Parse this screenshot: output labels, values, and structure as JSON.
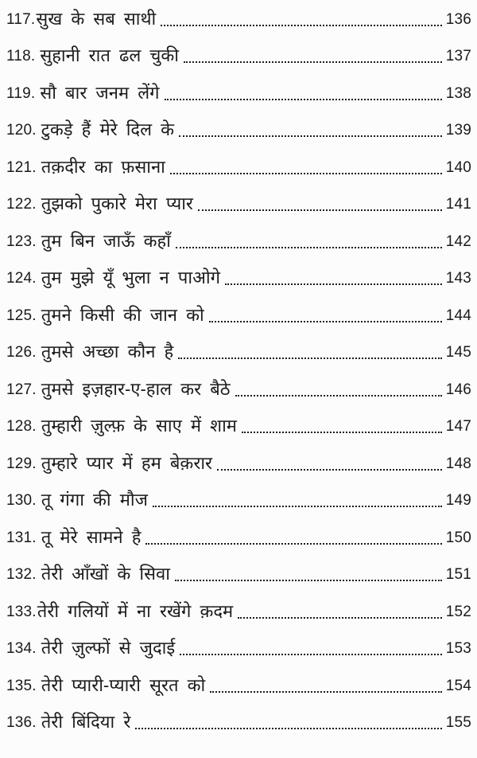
{
  "page": {
    "background_color": "#fcfcfc",
    "text_color": "#1b1b1b"
  },
  "toc": {
    "entries": [
      {
        "num": "117.",
        "title": "सुख के सब साथी",
        "page": "136",
        "tight": true
      },
      {
        "num": "118.",
        "title": "सुहानी रात ढल चुकी",
        "page": "137"
      },
      {
        "num": "119.",
        "title": "सौ बार जनम लेंगे",
        "page": "138"
      },
      {
        "num": "120.",
        "title": "टुकड़े हैं मेरे दिल के",
        "page": "139"
      },
      {
        "num": "121.",
        "title": "तक़दीर का फ़साना",
        "page": "140"
      },
      {
        "num": "122.",
        "title": "तुझको पुकारे मेरा प्यार",
        "page": "141"
      },
      {
        "num": "123.",
        "title": "तुम बिन जाऊँ कहाँ",
        "page": "142"
      },
      {
        "num": "124.",
        "title": "तुम मुझे यूँ भुला न पाओगे",
        "page": "143"
      },
      {
        "num": "125.",
        "title": "तुमने किसी की जान को",
        "page": "144"
      },
      {
        "num": "126.",
        "title": "तुमसे अच्छा कौन है",
        "page": "145"
      },
      {
        "num": "127.",
        "title": "तुमसे इज़हार-ए-हाल कर बैठे",
        "page": "146"
      },
      {
        "num": "128.",
        "title": "तुम्हारी ज़ुल्फ़ के साए में शाम",
        "page": "147"
      },
      {
        "num": "129.",
        "title": "तुम्हारे प्यार में हम बेक़रार",
        "page": "148"
      },
      {
        "num": "130.",
        "title": "तू गंगा की मौज",
        "page": "149"
      },
      {
        "num": "131.",
        "title": "तू मेरे सामने है",
        "page": "150"
      },
      {
        "num": "132.",
        "title": "तेरी आँखों के सिवा",
        "page": "151"
      },
      {
        "num": "133.",
        "title": "तेरी गलियों में ना रखेंगे क़दम",
        "page": "152",
        "tight": true
      },
      {
        "num": "134.",
        "title": "तेरी ज़ुल्फों से जुदाई",
        "page": "153"
      },
      {
        "num": "135.",
        "title": "तेरी प्यारी-प्यारी सूरत को",
        "page": "154"
      },
      {
        "num": "136.",
        "title": "तेरी बिंदिया रे",
        "page": "155"
      }
    ]
  }
}
